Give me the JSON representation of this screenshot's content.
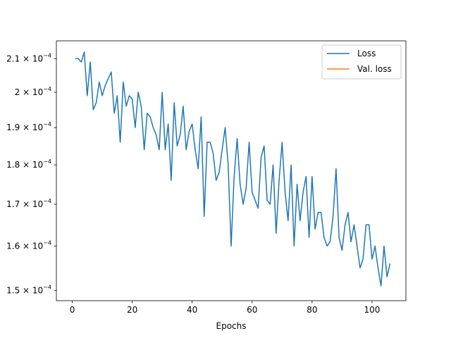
{
  "chart_data": {
    "type": "line",
    "title": "",
    "xlabel": "Epochs",
    "ylabel": "",
    "yscale": "log",
    "xlim": [
      -5.3,
      111.3
    ],
    "ylim": [
      0.0001478,
      0.0002155
    ],
    "xticks": [
      0,
      20,
      40,
      60,
      80,
      100
    ],
    "yticks": [
      {
        "value": 0.00015,
        "mantissa": "1.5",
        "exp": "−4"
      },
      {
        "value": 0.00016,
        "mantissa": "1.6",
        "exp": "−4"
      },
      {
        "value": 0.00017,
        "mantissa": "1.7",
        "exp": "−4"
      },
      {
        "value": 0.00018,
        "mantissa": "1.8",
        "exp": "−4"
      },
      {
        "value": 0.00019,
        "mantissa": "1.9",
        "exp": "−4"
      },
      {
        "value": 0.0002,
        "mantissa": "2",
        "exp": "−4"
      },
      {
        "value": 0.00021,
        "mantissa": "2.1",
        "exp": "−4"
      }
    ],
    "tick_multiplier": "× 10",
    "legend_position": "top-right",
    "grid": false,
    "series": [
      {
        "name": "Loss",
        "color": "#1f77b4",
        "x": [
          1,
          2,
          3,
          4,
          5,
          6,
          7,
          8,
          9,
          10,
          11,
          12,
          13,
          14,
          15,
          16,
          17,
          18,
          19,
          20,
          21,
          22,
          23,
          24,
          25,
          26,
          27,
          28,
          29,
          30,
          31,
          32,
          33,
          34,
          35,
          36,
          37,
          38,
          39,
          40,
          41,
          42,
          43,
          44,
          45,
          46,
          47,
          48,
          49,
          50,
          51,
          52,
          53,
          54,
          55,
          56,
          57,
          58,
          59,
          60,
          61,
          62,
          63,
          64,
          65,
          66,
          67,
          68,
          69,
          70,
          71,
          72,
          73,
          74,
          75,
          76,
          77,
          78,
          79,
          80,
          81,
          82,
          83,
          84,
          85,
          86,
          87,
          88,
          89,
          90,
          91,
          92,
          93,
          94,
          95,
          96,
          97,
          98,
          99,
          100,
          101,
          102,
          103,
          104,
          105,
          106
        ],
        "values": [
          0.00021,
          0.00021,
          0.000209,
          0.000212,
          0.000199,
          0.000209,
          0.000195,
          0.000197,
          0.000203,
          0.000199,
          0.000202,
          0.000204,
          0.000206,
          0.000194,
          0.000199,
          0.000186,
          0.000203,
          0.000196,
          0.000199,
          0.000198,
          0.00019,
          0.0002,
          0.000196,
          0.000184,
          0.000194,
          0.000193,
          0.00019,
          0.000188,
          0.000184,
          0.0002,
          0.000184,
          0.000191,
          0.000176,
          0.000197,
          0.000185,
          0.000188,
          0.000196,
          0.000184,
          0.000189,
          0.000191,
          0.000184,
          0.000179,
          0.000193,
          0.000167,
          0.000186,
          0.000186,
          0.000183,
          0.000176,
          0.000178,
          0.000184,
          0.00019,
          0.00018,
          0.00016,
          0.000177,
          0.000187,
          0.000175,
          0.00017,
          0.000174,
          0.000186,
          0.000173,
          0.000171,
          0.000169,
          0.000182,
          0.000185,
          0.000171,
          0.00017,
          0.00018,
          0.000163,
          0.000176,
          0.000186,
          0.000173,
          0.000166,
          0.00018,
          0.00016,
          0.000175,
          0.000166,
          0.000173,
          0.000177,
          0.000162,
          0.000177,
          0.000164,
          0.000168,
          0.000168,
          0.000162,
          0.00016,
          0.000161,
          0.000167,
          0.000179,
          0.000162,
          0.000159,
          0.000165,
          0.000168,
          0.000161,
          0.000165,
          0.00016,
          0.000155,
          0.000157,
          0.000165,
          0.000165,
          0.000157,
          0.00016,
          0.000155,
          0.000151,
          0.00016,
          0.000153,
          0.000156
        ]
      },
      {
        "name": "Val. loss",
        "color": "#ff7f0e",
        "x": [],
        "values": []
      }
    ]
  }
}
